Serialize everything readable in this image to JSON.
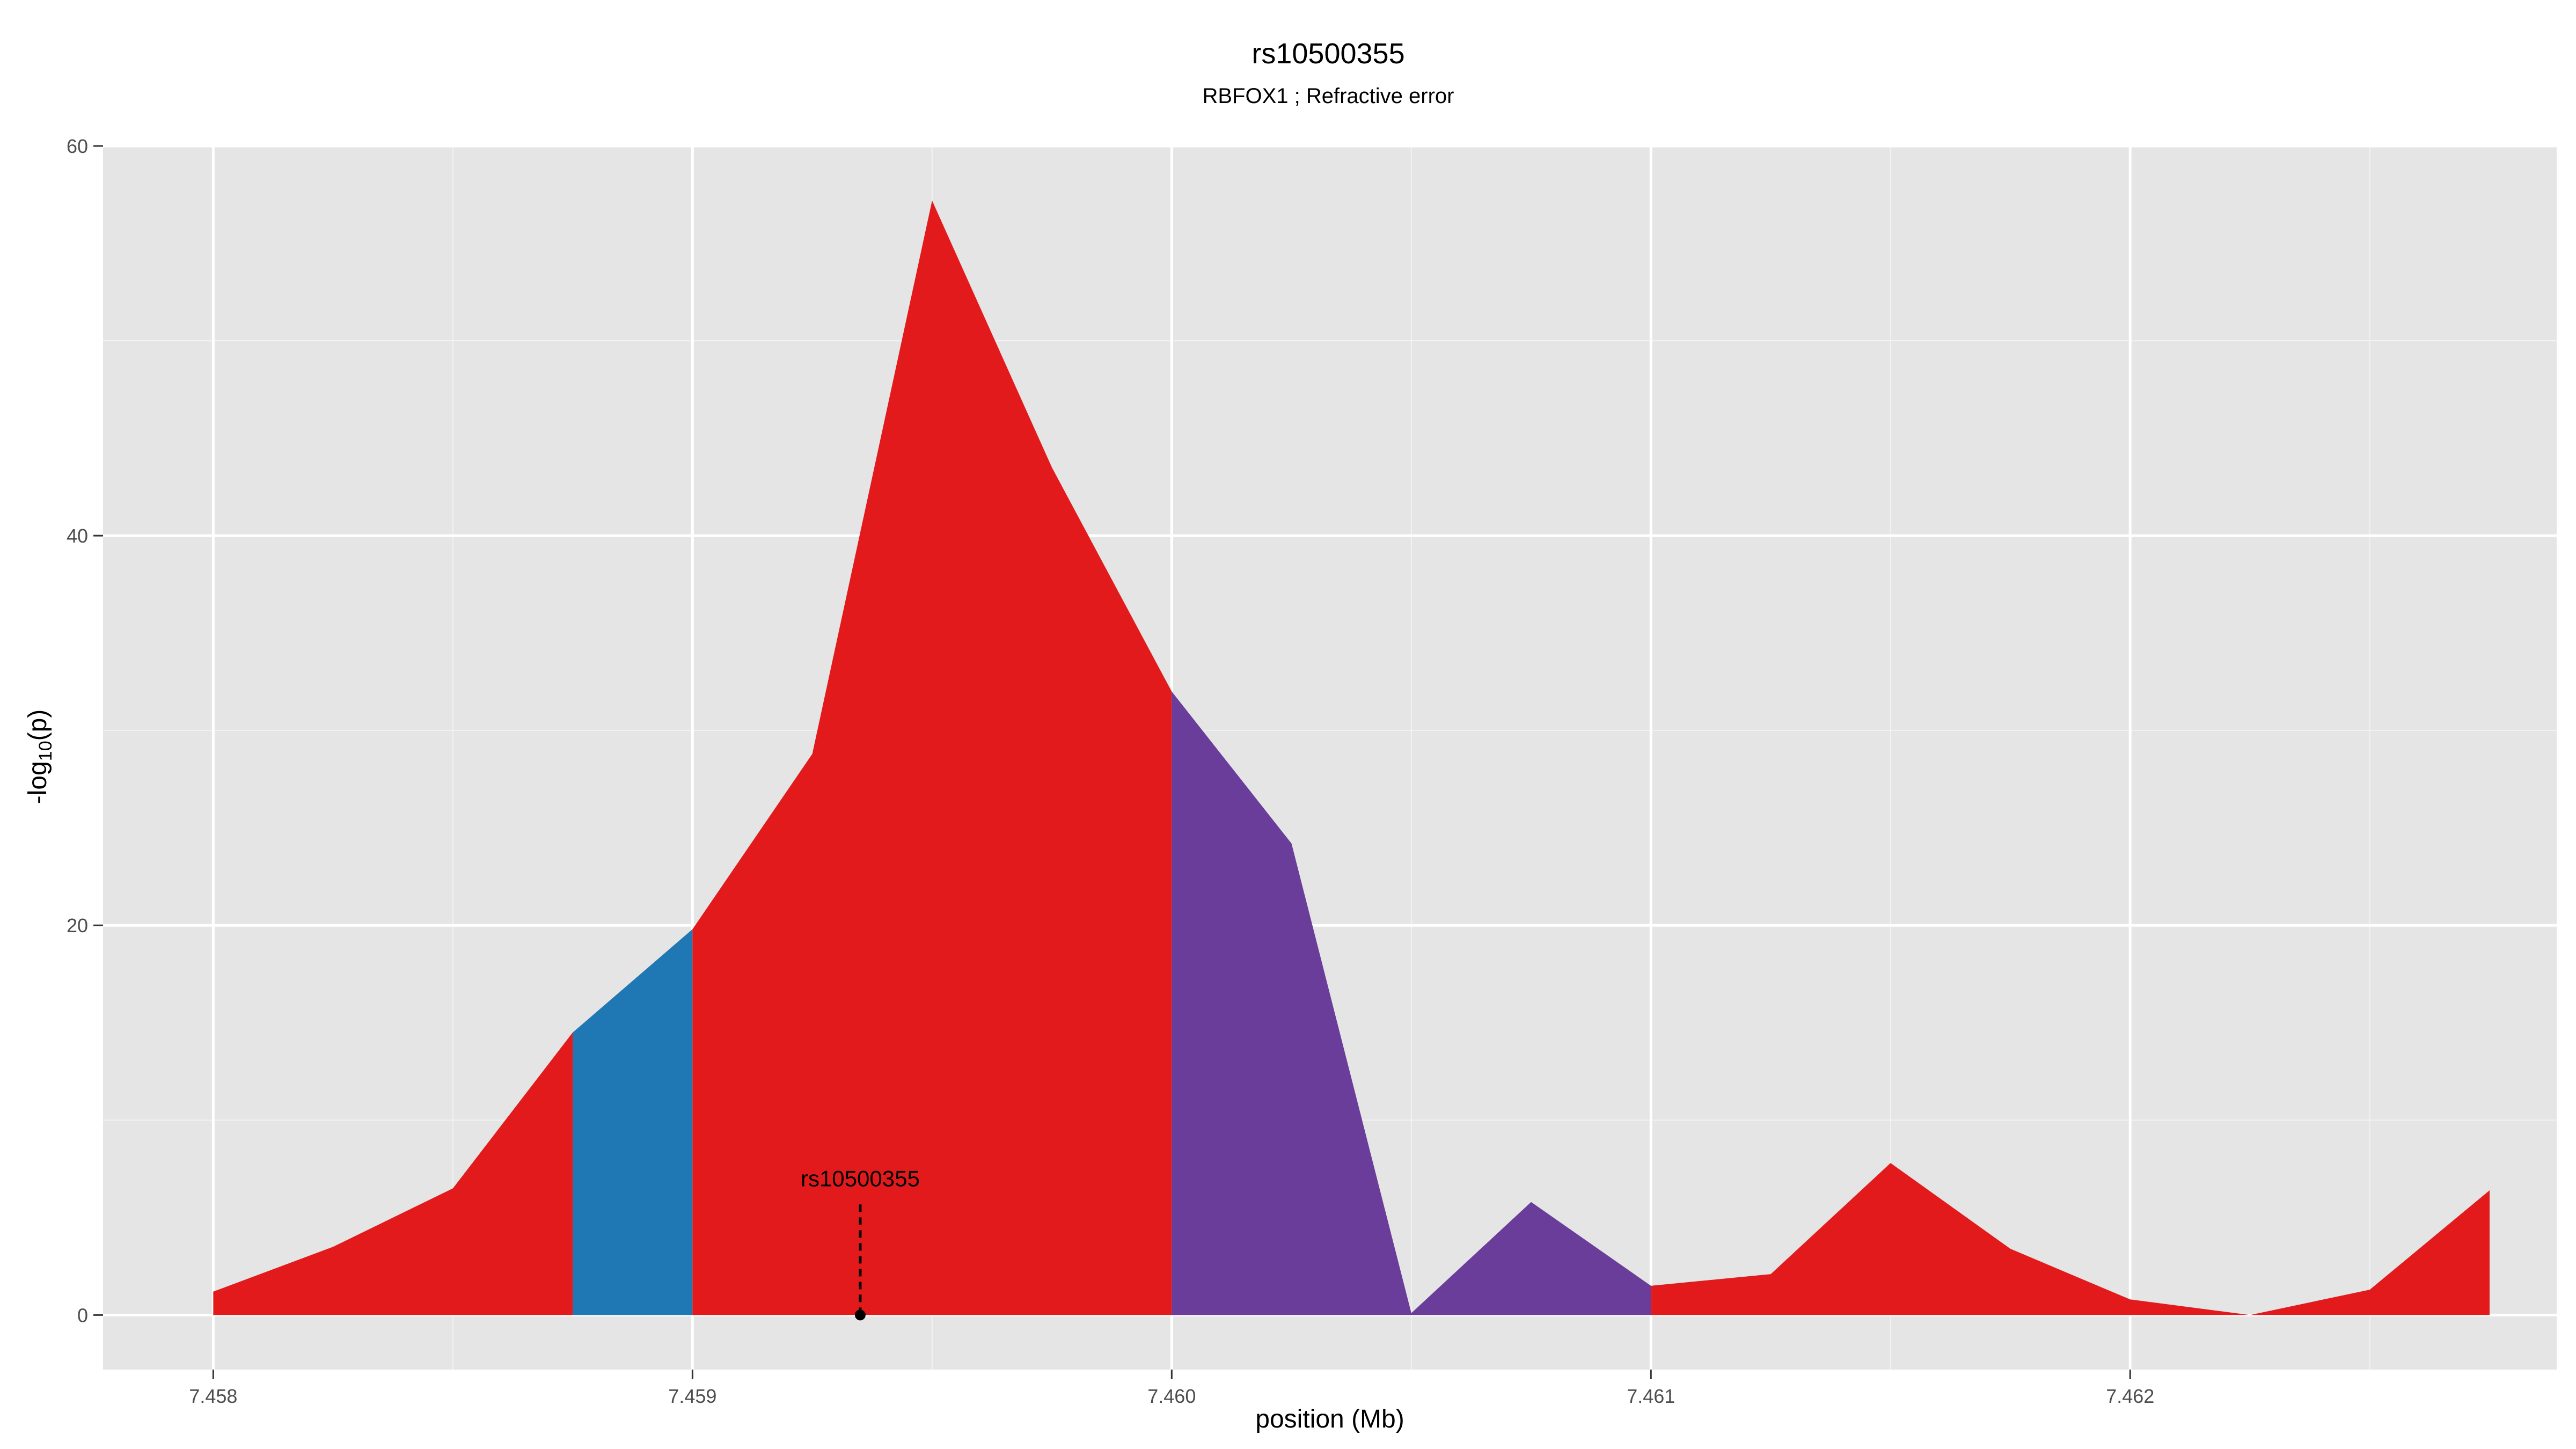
{
  "chart_data": {
    "type": "area",
    "title": "rs10500355",
    "subtitle": "RBFOX1 ; Refractive error",
    "xlabel": "position (Mb)",
    "ylabel_main": "-log",
    "ylabel_sub": "10",
    "ylabel_end": "(p)",
    "xlim": [
      7.45777,
      7.46289
    ],
    "ylim": [
      -2.8,
      60
    ],
    "x_ticks": [
      7.458,
      7.459,
      7.46,
      7.461,
      7.462
    ],
    "x_tick_labels": [
      "7.458",
      "7.459",
      "7.460",
      "7.461",
      "7.462"
    ],
    "y_ticks": [
      0,
      20,
      40,
      60
    ],
    "y_tick_labels": [
      "0",
      "20",
      "40",
      "60"
    ],
    "grid": true,
    "background": "#e5e5e5",
    "colors": {
      "red": "#e31a1c",
      "blue": "#1f78b4",
      "purple": "#6a3d9a"
    },
    "points": [
      {
        "x": 7.458,
        "y": 1.2
      },
      {
        "x": 7.45825,
        "y": 3.5
      },
      {
        "x": 7.4585,
        "y": 6.5
      },
      {
        "x": 7.45875,
        "y": 14.5
      },
      {
        "x": 7.459,
        "y": 19.8
      },
      {
        "x": 7.45925,
        "y": 28.8
      },
      {
        "x": 7.4595,
        "y": 57.2
      },
      {
        "x": 7.45975,
        "y": 43.5
      },
      {
        "x": 7.46,
        "y": 32.0
      },
      {
        "x": 7.46025,
        "y": 24.2
      },
      {
        "x": 7.4605,
        "y": 0.1
      },
      {
        "x": 7.46075,
        "y": 5.8
      },
      {
        "x": 7.461,
        "y": 1.5
      },
      {
        "x": 7.46125,
        "y": 2.1
      },
      {
        "x": 7.4615,
        "y": 7.8
      },
      {
        "x": 7.46175,
        "y": 3.4
      },
      {
        "x": 7.462,
        "y": 0.8
      },
      {
        "x": 7.46225,
        "y": 0.0
      },
      {
        "x": 7.4625,
        "y": 1.3
      },
      {
        "x": 7.46275,
        "y": 6.4
      }
    ],
    "segments": [
      {
        "color": "red",
        "from": 0,
        "to": 3
      },
      {
        "color": "blue",
        "from": 3,
        "to": 4
      },
      {
        "color": "red",
        "from": 4,
        "to": 8
      },
      {
        "color": "purple",
        "from": 8,
        "to": 12
      },
      {
        "color": "red",
        "from": 12,
        "to": 19
      }
    ],
    "annotation": {
      "label": "rs10500355",
      "x": 7.45935,
      "y": 0
    }
  }
}
